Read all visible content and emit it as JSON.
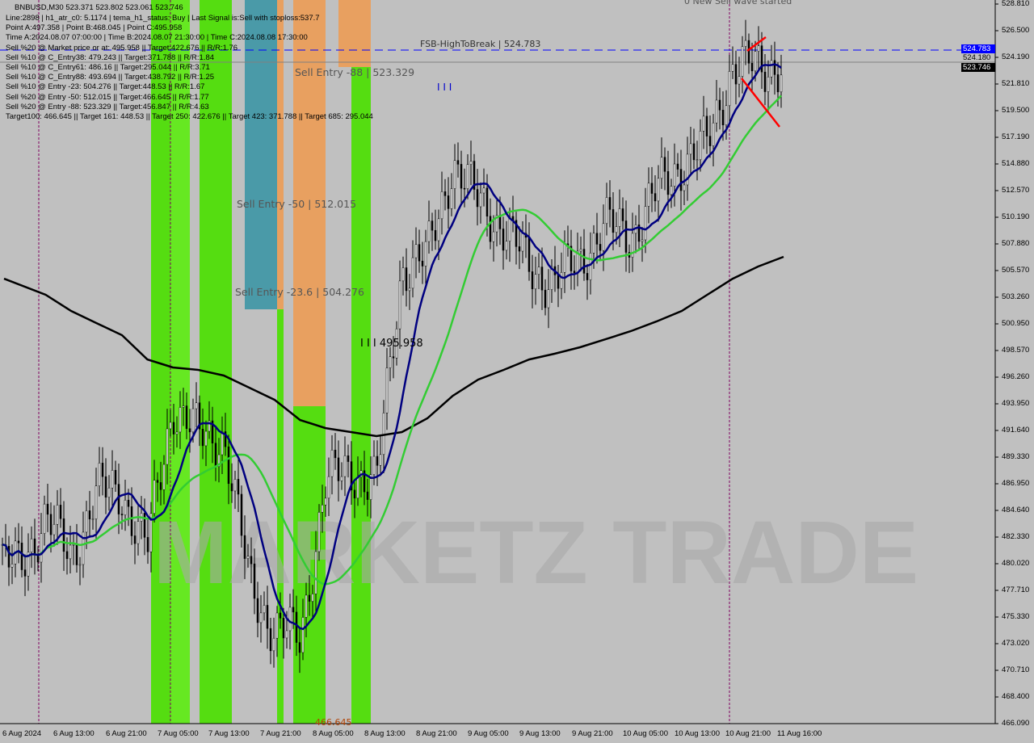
{
  "header": {
    "symbol_line": "BNBUSD,M30  523.371 523.802 523.061 523.746",
    "lines": [
      "Line:2898 | h1_atr_c0: 5.1174 | tema_h1_status: Buy | Last Signal is:Sell with stoploss:537.7",
      "Point A:497.358 | Point B:468.045 | Point C:495.958",
      "Time A:2024.08.07 07:00:00 | Time B:2024.08.07 21:30:00 | Time C:2024.08.08 17:30:00",
      "Sell %20 @ Market price or at: 495.958 || Target:422.676 || R/R:1.76",
      "Sell %10 @ C_Entry38: 479.243 || Target:371.788 || R/R:1.84",
      "Sell %10 @ C_Entry61: 486.16 || Target:295.044 || R/R:3.71",
      "Sell %10 @ C_Entry88: 493.694 || Target:438.792 || R/R:1.25",
      "Sell %10 @ Entry -23: 504.276 || Target:448.53 || R/R:1.67",
      "Sell %20 @ Entry -50: 512.015 || Target:466.645 || R/R:1.77",
      "Sell %20 @ Entry -88: 523.329 || Target:456.847 || R/R:4.63",
      "Target100: 466.645 || Target 161: 448.53 || Target 250: 422.676 || Target 423: 371.788 || Target 685: 295.044"
    ]
  },
  "annotations": {
    "fsb": "FSB-HighToBreak | 524.783",
    "sell88": "Sell Entry -88 | 523.329",
    "sell50": "Sell Entry -50 | 512.015",
    "sell236": "Sell Entry -23.6 | 504.276",
    "pointc": "I I I 495.958",
    "wave": "0 New Sell wave started",
    "marker": "I I I",
    "target100": "466.645",
    "watermark": "MARKETZ TRADE"
  },
  "price_tags": {
    "fsb": "524.783",
    "current": "523.746",
    "hidden": "524.180"
  },
  "colors": {
    "background": "#c0c0c0",
    "ma_long": "#000000",
    "ma_mid": "#33cc33",
    "ma_fast": "#000080",
    "fsb_line": "#0000ff",
    "band_green": "#55dd11",
    "band_orange": "#e8a060",
    "band_teal": "#4a9aa8"
  },
  "chart_data": {
    "type": "candlestick",
    "symbol": "BNBUSD",
    "timeframe": "M30",
    "ylim": [
      466.09,
      528.81
    ],
    "y_ticks": [
      "528.810",
      "526.500",
      "524.190",
      "521.810",
      "519.500",
      "517.190",
      "514.880",
      "512.570",
      "510.190",
      "507.880",
      "505.570",
      "503.260",
      "500.950",
      "498.570",
      "496.260",
      "493.950",
      "491.640",
      "489.330",
      "486.950",
      "484.640",
      "482.330",
      "480.020",
      "477.710",
      "475.330",
      "473.020",
      "470.710",
      "468.400",
      "466.090"
    ],
    "x_ticks": [
      "6 Aug 2024",
      "6 Aug 13:00",
      "6 Aug 21:00",
      "7 Aug 05:00",
      "7 Aug 13:00",
      "7 Aug 21:00",
      "8 Aug 05:00",
      "8 Aug 13:00",
      "8 Aug 21:00",
      "9 Aug 05:00",
      "9 Aug 13:00",
      "9 Aug 21:00",
      "10 Aug 05:00",
      "10 Aug 13:00",
      "10 Aug 21:00",
      "11 Aug 16:00"
    ],
    "x": [
      "6 Aug 05:00",
      "6 Aug 09:00",
      "6 Aug 13:00",
      "6 Aug 17:00",
      "6 Aug 21:00",
      "7 Aug 01:00",
      "7 Aug 05:00",
      "7 Aug 09:00",
      "7 Aug 13:00",
      "7 Aug 17:00",
      "7 Aug 21:00",
      "8 Aug 01:00",
      "8 Aug 05:00",
      "8 Aug 09:00",
      "8 Aug 13:00",
      "8 Aug 17:00",
      "8 Aug 21:00",
      "9 Aug 01:00",
      "9 Aug 05:00",
      "9 Aug 09:00",
      "9 Aug 13:00",
      "9 Aug 17:00",
      "9 Aug 21:00",
      "10 Aug 01:00",
      "10 Aug 05:00",
      "10 Aug 09:00",
      "10 Aug 13:00",
      "10 Aug 17:00",
      "10 Aug 21:00",
      "11 Aug 06:30",
      "11 Aug 12:00"
    ],
    "close": [
      479.88,
      484.11,
      480.59,
      486.22,
      486.22,
      481.29,
      493.96,
      491.14,
      491.14,
      478.47,
      474.25,
      473.55,
      486.92,
      488.33,
      486.92,
      505.93,
      506.63,
      515.08,
      511.56,
      509.45,
      505.93,
      504.52,
      506.63,
      509.45,
      508.75,
      512.27,
      515.08,
      516.49,
      523.53,
      523.18,
      523.75
    ],
    "ma_long": [
      504.87,
      503.47,
      502.06,
      501.0,
      499.95,
      497.83,
      497.13,
      496.92,
      496.43,
      495.37,
      494.31,
      492.55,
      491.85,
      491.5,
      491.15,
      491.5,
      492.7,
      494.66,
      496.08,
      496.92,
      497.83,
      498.33,
      498.89,
      499.59,
      500.3,
      501.14,
      502.06,
      503.47,
      504.87,
      505.93,
      506.78
    ],
    "levels": {
      "fsb_high_to_break": 524.783,
      "current": 523.746
    }
  }
}
